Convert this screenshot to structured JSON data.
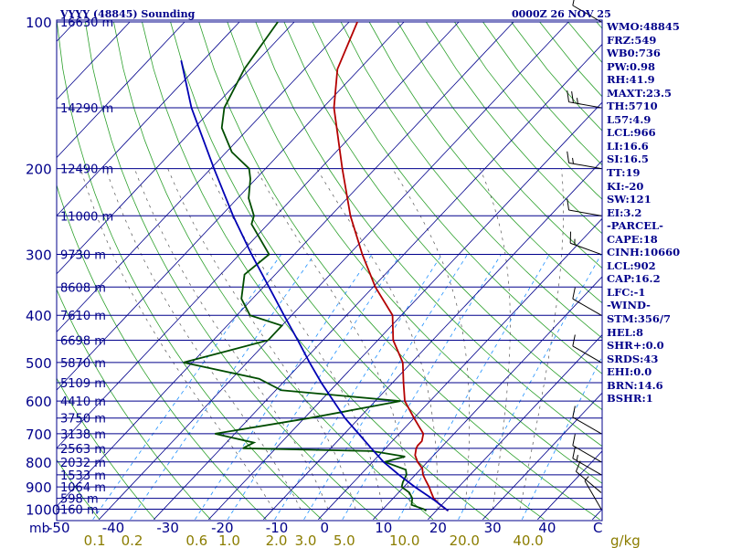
{
  "header": {
    "station": "VYYY (48845) Sounding",
    "time": "0000Z 26 NOV 25"
  },
  "indices": [
    "WMO:48845",
    "FRZ:549",
    "WB0:736",
    "PW:0.98",
    "RH:41.9",
    "MAXT:23.5",
    "TH:5710",
    "L57:4.9",
    "LCL:966",
    "LI:16.6",
    "SI:16.5",
    "TT:19",
    "KI:-20",
    "SW:121",
    "EI:3.2",
    "-PARCEL-",
    "CAPE:18",
    "CINH:10660",
    "LCL:902",
    "CAP:16.2",
    "LFC:-1",
    "-WIND-",
    "STM:356/7",
    "HEL:8",
    "SHR+:0.0",
    "SRDS:43",
    "EHI:0.0",
    "BRN:14.6",
    "BSHR:1"
  ],
  "colors": {
    "isobar": "#00008b",
    "isotherm": "#00008b",
    "dry_adiabat": "#2ca02c",
    "moist_adiabat": "#555555",
    "mixing_ratio": "#1e90ff",
    "temperature": "#b40000",
    "dewpoint": "#004d00",
    "parcel": "#0000b4",
    "text": "#00008b",
    "mixing_label": "#8b7d00"
  },
  "chart_data": {
    "type": "line",
    "diagram": "skew-T log-P",
    "pressure_unit": "mb",
    "pressure_ticks": [
      100,
      200,
      300,
      400,
      500,
      600,
      700,
      800,
      900,
      1000
    ],
    "pressure_range": [
      100,
      1050
    ],
    "temperature_ticks": [
      "-50",
      "-40",
      "-30",
      "-20",
      "-10",
      "0",
      "10",
      "20",
      "30",
      "40",
      "C"
    ],
    "temperature_range": [
      -50,
      50
    ],
    "mixing_ratio_labels": [
      "0.1",
      "0.2",
      "0.6",
      "1.0",
      "2.0",
      "3.0",
      "5.0",
      "10.0",
      "20.0",
      "40.0",
      "g/kg"
    ],
    "mixing_ratio_values": [
      0.1,
      0.2,
      0.6,
      1.0,
      2.0,
      3.0,
      5.0,
      10.0,
      20.0,
      40.0
    ],
    "height_levels": [
      {
        "p": 100,
        "label": "16630 m"
      },
      {
        "p": 150,
        "label": "14290 m"
      },
      {
        "p": 200,
        "label": "12490 m"
      },
      {
        "p": 250,
        "label": "11000 m"
      },
      {
        "p": 300,
        "label": "9730 m"
      },
      {
        "p": 350,
        "label": "8608 m"
      },
      {
        "p": 400,
        "label": "7610 m"
      },
      {
        "p": 450,
        "label": "6698 m"
      },
      {
        "p": 500,
        "label": "5870 m"
      },
      {
        "p": 550,
        "label": "5109 m"
      },
      {
        "p": 600,
        "label": "4410 m"
      },
      {
        "p": 650,
        "label": "3750 m"
      },
      {
        "p": 700,
        "label": "3138 m"
      },
      {
        "p": 750,
        "label": "2563 m"
      },
      {
        "p": 800,
        "label": "2032 m"
      },
      {
        "p": 850,
        "label": "1533 m"
      },
      {
        "p": 900,
        "label": "1064 m"
      },
      {
        "p": 950,
        "label": "598 m"
      },
      {
        "p": 1000,
        "label": "160 m"
      }
    ],
    "series": [
      {
        "key": "temperature",
        "points": [
          [
            1008,
            22.2
          ],
          [
            1000,
            21.5
          ],
          [
            975,
            19.3
          ],
          [
            950,
            17.4
          ],
          [
            925,
            16.0
          ],
          [
            900,
            14.6
          ],
          [
            875,
            13.0
          ],
          [
            850,
            11.4
          ],
          [
            825,
            10.2
          ],
          [
            800,
            8.2
          ],
          [
            775,
            6.6
          ],
          [
            750,
            5.6
          ],
          [
            740,
            5.4
          ],
          [
            725,
            5.4
          ],
          [
            700,
            4.4
          ],
          [
            650,
            0.0
          ],
          [
            600,
            -4.6
          ],
          [
            550,
            -8.0
          ],
          [
            500,
            -11.6
          ],
          [
            450,
            -17.2
          ],
          [
            400,
            -21.6
          ],
          [
            350,
            -29.6
          ],
          [
            300,
            -37.6
          ],
          [
            250,
            -46.4
          ],
          [
            200,
            -56.0
          ],
          [
            150,
            -68.0
          ],
          [
            125,
            -74.0
          ],
          [
            100,
            -78.5
          ]
        ]
      },
      {
        "key": "dewpoint",
        "points": [
          [
            1008,
            18.2
          ],
          [
            1000,
            17.5
          ],
          [
            980,
            14.5
          ],
          [
            950,
            13.5
          ],
          [
            925,
            12.0
          ],
          [
            900,
            9.6
          ],
          [
            880,
            9.0
          ],
          [
            850,
            8.4
          ],
          [
            830,
            7.4
          ],
          [
            800,
            2.2
          ],
          [
            780,
            5.0
          ],
          [
            760,
            -2.0
          ],
          [
            750,
            -26.0
          ],
          [
            730,
            -25.0
          ],
          [
            700,
            -33.6
          ],
          [
            650,
            -19.0
          ],
          [
            600,
            -5.4
          ],
          [
            570,
            -29.0
          ],
          [
            540,
            -35.0
          ],
          [
            500,
            -51.6
          ],
          [
            450,
            -40.0
          ],
          [
            420,
            -40.0
          ],
          [
            400,
            -47.6
          ],
          [
            370,
            -52.0
          ],
          [
            330,
            -55.6
          ],
          [
            300,
            -54.6
          ],
          [
            260,
            -63.0
          ],
          [
            250,
            -64.0
          ],
          [
            230,
            -68.0
          ],
          [
            210,
            -71.0
          ],
          [
            200,
            -73.0
          ],
          [
            185,
            -79.0
          ],
          [
            165,
            -85.0
          ],
          [
            150,
            -88.0
          ],
          [
            125,
            -91.0
          ],
          [
            100,
            -93.0
          ]
        ]
      },
      {
        "key": "parcel",
        "points": [
          [
            1008,
            22.2
          ],
          [
            960,
            18.0
          ],
          [
            900,
            12.0
          ],
          [
            850,
            7.0
          ],
          [
            800,
            2.0
          ],
          [
            750,
            -2.6
          ],
          [
            700,
            -7.4
          ],
          [
            650,
            -12.6
          ],
          [
            600,
            -17.6
          ],
          [
            550,
            -23.0
          ],
          [
            500,
            -28.6
          ],
          [
            450,
            -34.6
          ],
          [
            400,
            -41.4
          ],
          [
            350,
            -49.0
          ],
          [
            300,
            -57.8
          ],
          [
            250,
            -67.8
          ],
          [
            200,
            -79.4
          ],
          [
            150,
            -94.0
          ],
          [
            120,
            -104.0
          ]
        ]
      }
    ],
    "wind_barbs": [
      {
        "p": 1000,
        "dir": 330,
        "spd": 5
      },
      {
        "p": 925,
        "dir": 310,
        "spd": 10
      },
      {
        "p": 850,
        "dir": 300,
        "spd": 15
      },
      {
        "p": 800,
        "dir": 300,
        "spd": 10
      },
      {
        "p": 700,
        "dir": 300,
        "spd": 10
      },
      {
        "p": 500,
        "dir": 300,
        "spd": 10
      },
      {
        "p": 400,
        "dir": 300,
        "spd": 10
      },
      {
        "p": 300,
        "dir": 290,
        "spd": 15
      },
      {
        "p": 250,
        "dir": 280,
        "spd": 10
      },
      {
        "p": 200,
        "dir": 280,
        "spd": 15
      },
      {
        "p": 150,
        "dir": 280,
        "spd": 25
      },
      {
        "p": 100,
        "dir": 300,
        "spd": 10
      }
    ]
  }
}
